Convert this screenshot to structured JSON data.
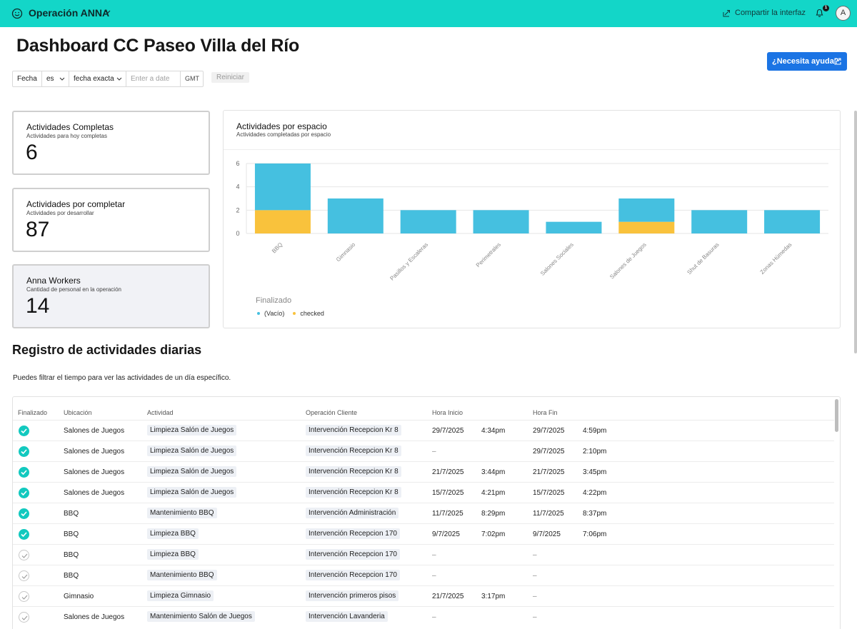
{
  "app": {
    "title": "Operación ANNA",
    "share_label": "Compartir la interfaz",
    "notification_count": "1",
    "avatar_initial": "A"
  },
  "page": {
    "title": "Dashboard CC Paseo Villa del Río",
    "help_label": "¿Necesita ayuda?"
  },
  "filter": {
    "field": "Fecha",
    "operator": "es",
    "mode": "fecha exacta",
    "date_placeholder": "Enter a date",
    "timezone": "GMT",
    "reset_label": "Reiniciar"
  },
  "kpis": [
    {
      "title": "Actividades Completas",
      "subtitle": "Actividades para hoy completas",
      "value": "6"
    },
    {
      "title": "Actividades por completar",
      "subtitle": "Actividades por desarrollar",
      "value": "87"
    },
    {
      "title": "Anna Workers",
      "subtitle": "Cantidad de personal en la operación",
      "value": "14"
    }
  ],
  "chart": {
    "title": "Actividades por espacio",
    "subtitle": "Actividades completadas por espacio",
    "legend_title": "Finalizado",
    "colors": {
      "vacio": "#45c0e0",
      "checked": "#f9c23c"
    }
  },
  "chart_data": {
    "type": "bar",
    "stacked": true,
    "categories": [
      "BBQ",
      "Gimnasio",
      "Pasillos y Escaleras",
      "Perimetrales",
      "Salones Sociales",
      "Salones de Juegos",
      "Shut de Basuras",
      "Zonas Húmedas"
    ],
    "series": [
      {
        "name": "checked",
        "values": [
          2,
          0,
          0,
          0,
          0,
          1,
          0,
          0
        ]
      },
      {
        "name": "(Vacío)",
        "values": [
          4,
          3,
          2,
          2,
          1,
          2,
          2,
          2
        ]
      }
    ],
    "yticks": [
      0,
      2,
      4,
      6
    ],
    "ylim": [
      0,
      6
    ],
    "grid": true,
    "legend_position": "bottom-left"
  },
  "section": {
    "title": "Registro de actividades diarias",
    "description": "Puedes filtrar el tiempo para ver las actividades de un día específico."
  },
  "table": {
    "columns": [
      "Finalizado",
      "Ubicación",
      "Actividad",
      "Operación Cliente",
      "Hora Inicio",
      "Hora Fin"
    ],
    "rows": [
      {
        "done": true,
        "ubicacion": "Salones de Juegos",
        "actividad": "Limpieza Salón de Juegos",
        "operacion": "Intervención Recepcion Kr 8",
        "inicio_fecha": "29/7/2025",
        "inicio_hora": "4:34pm",
        "fin_fecha": "29/7/2025",
        "fin_hora": "4:59pm"
      },
      {
        "done": true,
        "ubicacion": "Salones de Juegos",
        "actividad": "Limpieza Salón de Juegos",
        "operacion": "Intervención Recepcion Kr 8",
        "inicio_fecha": "–",
        "inicio_hora": "",
        "fin_fecha": "29/7/2025",
        "fin_hora": "2:10pm"
      },
      {
        "done": true,
        "ubicacion": "Salones de Juegos",
        "actividad": "Limpieza Salón de Juegos",
        "operacion": "Intervención Recepcion Kr 8",
        "inicio_fecha": "21/7/2025",
        "inicio_hora": "3:44pm",
        "fin_fecha": "21/7/2025",
        "fin_hora": "3:45pm"
      },
      {
        "done": true,
        "ubicacion": "Salones de Juegos",
        "actividad": "Limpieza Salón de Juegos",
        "operacion": "Intervención Recepcion Kr 8",
        "inicio_fecha": "15/7/2025",
        "inicio_hora": "4:21pm",
        "fin_fecha": "15/7/2025",
        "fin_hora": "4:22pm"
      },
      {
        "done": true,
        "ubicacion": "BBQ",
        "actividad": "Mantenimiento BBQ",
        "operacion": "Intervención Administración",
        "inicio_fecha": "11/7/2025",
        "inicio_hora": "8:29pm",
        "fin_fecha": "11/7/2025",
        "fin_hora": "8:37pm"
      },
      {
        "done": true,
        "ubicacion": "BBQ",
        "actividad": "Limpieza BBQ",
        "operacion": "Intervención Recepcion 170",
        "inicio_fecha": "9/7/2025",
        "inicio_hora": "7:02pm",
        "fin_fecha": "9/7/2025",
        "fin_hora": "7:06pm"
      },
      {
        "done": false,
        "ubicacion": "BBQ",
        "actividad": "Limpieza BBQ",
        "operacion": "Intervención Recepcion 170",
        "inicio_fecha": "–",
        "inicio_hora": "",
        "fin_fecha": "–",
        "fin_hora": ""
      },
      {
        "done": false,
        "ubicacion": "BBQ",
        "actividad": "Mantenimiento BBQ",
        "operacion": "Intervención Recepcion 170",
        "inicio_fecha": "–",
        "inicio_hora": "",
        "fin_fecha": "–",
        "fin_hora": ""
      },
      {
        "done": false,
        "ubicacion": "Gimnasio",
        "actividad": "Limpieza Gimnasio",
        "operacion": "Intervención primeros pisos",
        "inicio_fecha": "21/7/2025",
        "inicio_hora": "3:17pm",
        "fin_fecha": "–",
        "fin_hora": ""
      },
      {
        "done": false,
        "ubicacion": "Salones de Juegos",
        "actividad": "Mantenimiento Salón de Juegos",
        "operacion": "Intervención Lavanderia",
        "inicio_fecha": "–",
        "inicio_hora": "",
        "fin_fecha": "–",
        "fin_hora": ""
      }
    ]
  }
}
